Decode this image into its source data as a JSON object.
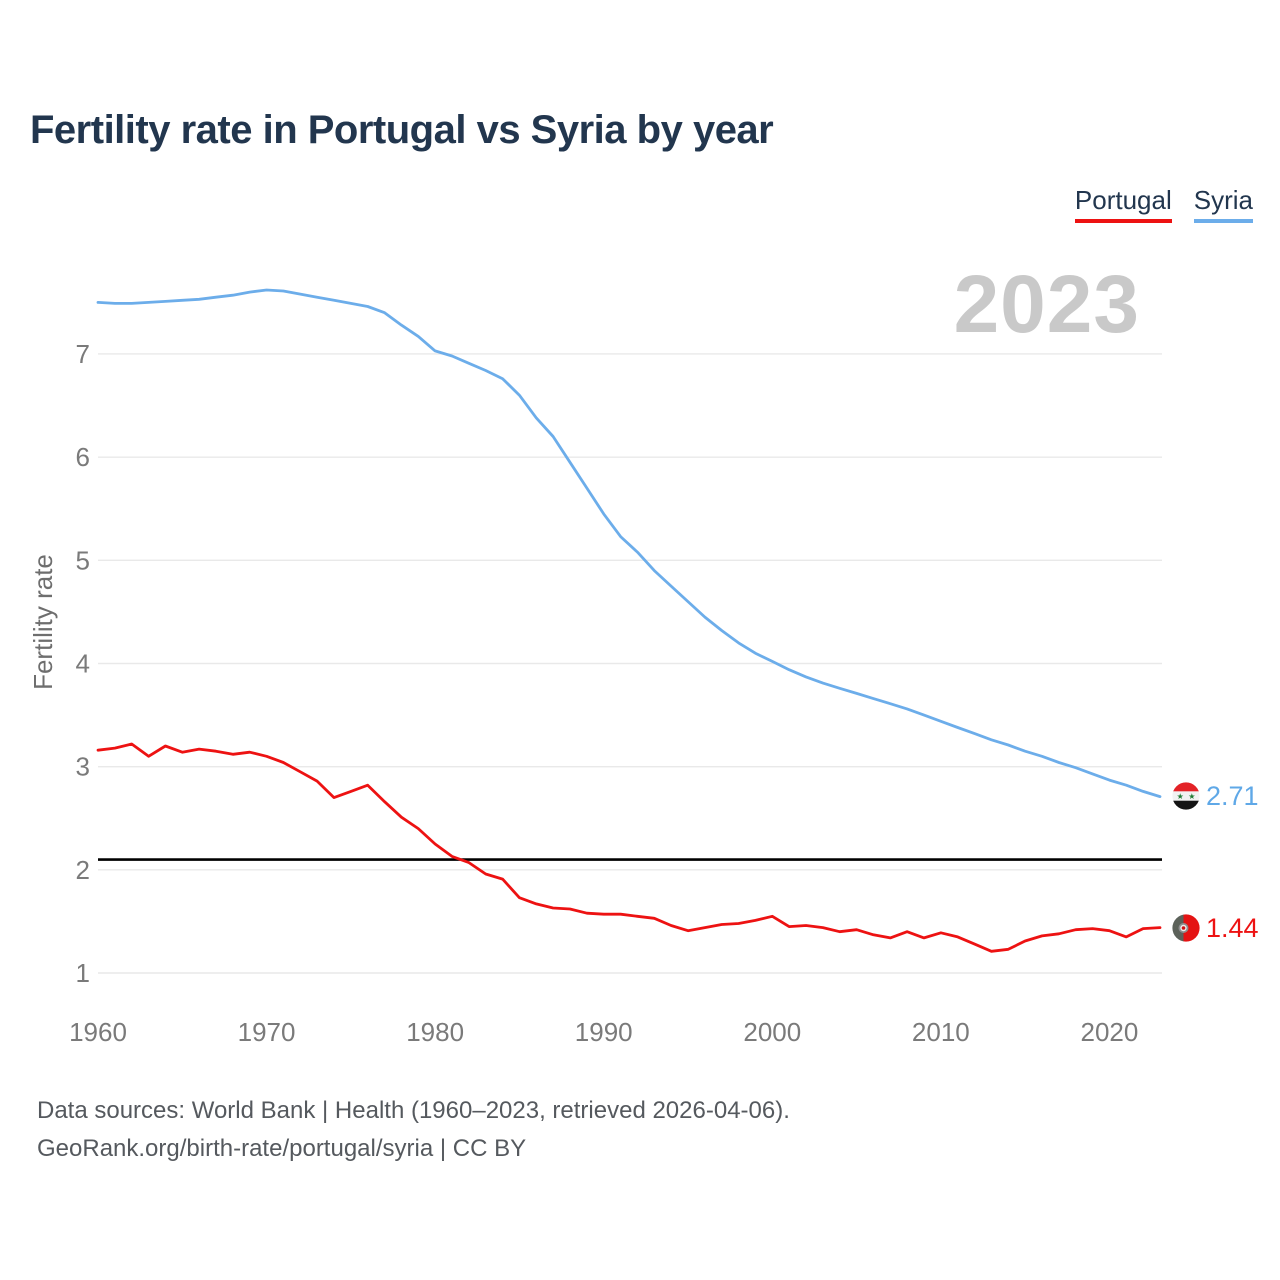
{
  "header": {
    "title": "Fertility rate in Portugal vs Syria by year"
  },
  "legend": {
    "items": [
      {
        "label": "Portugal",
        "color": "#ed1212"
      },
      {
        "label": "Syria",
        "color": "#6cadea"
      }
    ]
  },
  "watermark": "2023",
  "end_labels": {
    "syria": {
      "icon": "syria-flag-icon",
      "value": "2.71",
      "color": "#5fa8e7"
    },
    "portugal": {
      "icon": "portugal-flag-icon",
      "value": "1.44",
      "color": "#ed1212"
    }
  },
  "footer": {
    "line1": "Data sources: World Bank | Health (1960–2023, retrieved 2026-04-06).",
    "line2": "GeoRank.org/birth-rate/portugal/syria | CC BY"
  },
  "chart_data": {
    "type": "line",
    "title": "Fertility rate in Portugal vs Syria by year",
    "xlabel": "",
    "ylabel": "Fertility rate",
    "xlim": [
      1960,
      2023
    ],
    "ylim": [
      0.95,
      7.65
    ],
    "x_ticks": [
      1960,
      1970,
      1980,
      1990,
      2000,
      2010,
      2020
    ],
    "y_ticks": [
      1,
      2,
      3,
      4,
      5,
      6,
      7
    ],
    "grid": "horizontal",
    "legend_position": "top-right",
    "reference_line": {
      "value": 2.1,
      "color": "#000000"
    },
    "x": [
      1960,
      1961,
      1962,
      1963,
      1964,
      1965,
      1966,
      1967,
      1968,
      1969,
      1970,
      1971,
      1972,
      1973,
      1974,
      1975,
      1976,
      1977,
      1978,
      1979,
      1980,
      1981,
      1982,
      1983,
      1984,
      1985,
      1986,
      1987,
      1988,
      1989,
      1990,
      1991,
      1992,
      1993,
      1994,
      1995,
      1996,
      1997,
      1998,
      1999,
      2000,
      2001,
      2002,
      2003,
      2004,
      2005,
      2006,
      2007,
      2008,
      2009,
      2010,
      2011,
      2012,
      2013,
      2014,
      2015,
      2016,
      2017,
      2018,
      2019,
      2020,
      2021,
      2022,
      2023
    ],
    "series": [
      {
        "name": "Portugal",
        "color": "#ed1212",
        "values": [
          3.16,
          3.18,
          3.22,
          3.1,
          3.2,
          3.14,
          3.17,
          3.15,
          3.12,
          3.14,
          3.1,
          3.04,
          2.95,
          2.86,
          2.7,
          2.76,
          2.82,
          2.66,
          2.51,
          2.4,
          2.25,
          2.13,
          2.07,
          1.96,
          1.91,
          1.73,
          1.67,
          1.63,
          1.62,
          1.58,
          1.57,
          1.57,
          1.55,
          1.53,
          1.46,
          1.41,
          1.44,
          1.47,
          1.48,
          1.51,
          1.55,
          1.45,
          1.46,
          1.44,
          1.4,
          1.42,
          1.37,
          1.34,
          1.4,
          1.34,
          1.39,
          1.35,
          1.28,
          1.21,
          1.23,
          1.31,
          1.36,
          1.38,
          1.42,
          1.43,
          1.41,
          1.35,
          1.43,
          1.44
        ]
      },
      {
        "name": "Syria",
        "color": "#6cadea",
        "values": [
          7.5,
          7.49,
          7.49,
          7.5,
          7.51,
          7.52,
          7.53,
          7.55,
          7.57,
          7.6,
          7.62,
          7.61,
          7.58,
          7.55,
          7.52,
          7.49,
          7.46,
          7.4,
          7.28,
          7.17,
          7.03,
          6.98,
          6.91,
          6.84,
          6.76,
          6.6,
          6.38,
          6.2,
          5.95,
          5.7,
          5.45,
          5.23,
          5.08,
          4.9,
          4.75,
          4.6,
          4.45,
          4.32,
          4.2,
          4.1,
          4.02,
          3.94,
          3.87,
          3.81,
          3.76,
          3.71,
          3.66,
          3.61,
          3.56,
          3.5,
          3.44,
          3.38,
          3.32,
          3.26,
          3.21,
          3.15,
          3.1,
          3.04,
          2.99,
          2.93,
          2.87,
          2.82,
          2.76,
          2.71
        ]
      }
    ],
    "last_point_labels": {
      "Portugal": "1.44",
      "Syria": "2.71"
    }
  }
}
